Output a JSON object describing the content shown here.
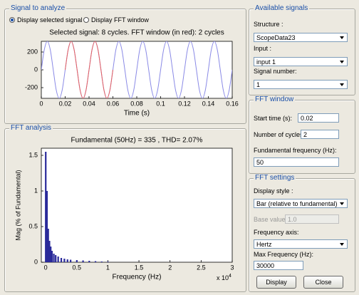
{
  "ui": {
    "signal_panel": {
      "title": "Signal to analyze",
      "options": [
        "Display selected signal",
        "Display FFT window"
      ]
    },
    "fft_panel": {
      "title": "FFT analysis"
    },
    "available_signals": {
      "title": "Available signals",
      "structure_label": "Structure :",
      "structure": "ScopeData23",
      "input_label": "Input :",
      "input": "input 1",
      "signal_number_label": "Signal number:",
      "signal_number": "1"
    },
    "fft_window": {
      "title": "FFT window",
      "start_time_label": "Start time (s):",
      "start_time": "0.02",
      "cycles_label": "Number of cycles:",
      "cycles": "2",
      "fundamental_label": "Fundamental frequency (Hz):",
      "fundamental": "50"
    },
    "fft_settings": {
      "title": "FFT settings",
      "display_style_label": "Display style :",
      "display_style": "Bar (relative to fundamental)",
      "base_value_label": "Base value:",
      "base_value": "1.0",
      "frequency_axis_label": "Frequency axis:",
      "frequency_axis": "Hertz",
      "max_frequency_label": "Max Frequency (Hz):",
      "max_frequency": "30000",
      "display_button": "Display",
      "close_button": "Close"
    }
  },
  "chart_data": [
    {
      "type": "line",
      "title": "Selected signal: 8 cycles. FFT window (in red): 2 cycles",
      "x_label": "Time (s)",
      "x": [
        0,
        0.0025,
        0.005,
        0.0075,
        0.01,
        0.0125,
        0.015,
        0.0175,
        0.02,
        0.0225,
        0.025,
        0.0275,
        0.03,
        0.0325,
        0.035,
        0.0375,
        0.04,
        0.0425,
        0.045,
        0.0475,
        0.05,
        0.0525,
        0.055,
        0.0575,
        0.06,
        0.0625,
        0.065,
        0.0675,
        0.07,
        0.0725,
        0.075,
        0.0775,
        0.08,
        0.0825,
        0.085,
        0.0875,
        0.09,
        0.0925,
        0.095,
        0.0975,
        0.1,
        0.1025,
        0.105,
        0.1075,
        0.11,
        0.1125,
        0.115,
        0.1175,
        0.12,
        0.1225,
        0.125,
        0.1275,
        0.13,
        0.1325,
        0.135,
        0.1375,
        0.14,
        0.1425,
        0.145,
        0.1475,
        0.15,
        0.1525,
        0.155,
        0.1575,
        0.16
      ],
      "series": [
        {
          "color": "#8a8ae6",
          "values": [
            0,
            226,
            320,
            226,
            0,
            -226,
            -320,
            -226,
            0,
            226,
            320,
            226,
            0,
            -226,
            -320,
            -226,
            0,
            226,
            320,
            226,
            0,
            -226,
            -320,
            -226,
            0,
            226,
            320,
            226,
            0,
            -226,
            -320,
            -226,
            0,
            226,
            320,
            226,
            0,
            -226,
            -320,
            -226,
            0,
            226,
            320,
            226,
            0,
            -226,
            -320,
            -226,
            0,
            226,
            320,
            226,
            0,
            -226,
            -320,
            -226,
            0,
            226,
            320,
            226,
            0,
            -226,
            -320,
            -226,
            0
          ]
        },
        {
          "color": "#e66060",
          "values": [
            null,
            null,
            null,
            null,
            null,
            null,
            null,
            null,
            0,
            226,
            320,
            226,
            0,
            -226,
            -320,
            -226,
            0,
            226,
            320,
            226,
            0,
            -226,
            -320,
            -226,
            0,
            null,
            null,
            null,
            null,
            null,
            null,
            null,
            null,
            null,
            null,
            null,
            null,
            null,
            null,
            null,
            null,
            null,
            null,
            null,
            null,
            null,
            null,
            null,
            null,
            null,
            null,
            null,
            null,
            null,
            null,
            null,
            null,
            null,
            null,
            null,
            null,
            null,
            null,
            null,
            null
          ]
        }
      ],
      "xlim": [
        0,
        0.16
      ],
      "xticks": [
        0,
        0.02,
        0.04,
        0.06,
        0.08,
        0.1,
        0.12,
        0.14,
        0.16
      ],
      "ylim": [
        -320,
        320
      ],
      "yticks": [
        200,
        0,
        -200
      ]
    },
    {
      "type": "bar",
      "title": "Fundamental (50Hz) = 335 , THD= 2.07%",
      "x_label": "Frequency (Hz)",
      "y_label": "Mag (% of Fundamental)",
      "x_multiplier": {
        "base": "x 10",
        "exponent": "4"
      },
      "x": [
        0,
        0.02,
        0.04,
        0.06,
        0.08,
        0.1,
        0.13,
        0.16,
        0.2,
        0.25,
        0.3,
        0.35,
        0.4,
        0.5,
        0.6,
        0.7,
        0.8,
        0.9,
        1.0
      ],
      "values": [
        1.55,
        1,
        0.47,
        0.3,
        0.22,
        0.16,
        0.12,
        0.1,
        0.08,
        0.06,
        0.05,
        0.04,
        0.035,
        0.03,
        0.025,
        0.02,
        0.015,
        0.01,
        0.008
      ],
      "color": "#2a2a9a",
      "xlim": [
        -0.07,
        3
      ],
      "xticks": [
        0,
        0.5,
        1,
        1.5,
        2,
        2.5,
        3
      ],
      "ylim": [
        0,
        1.6
      ],
      "yticks": [
        0,
        0.5,
        1,
        1.5
      ]
    }
  ]
}
